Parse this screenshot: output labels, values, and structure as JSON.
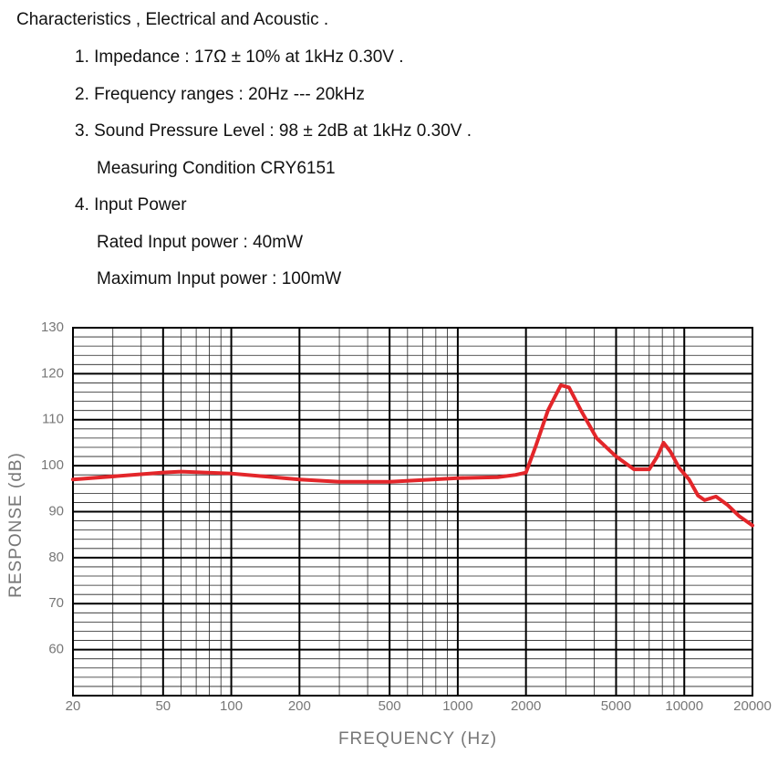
{
  "header": {
    "title": "Characteristics , Electrical and Acoustic ."
  },
  "specs": [
    "1. Impedance : 17Ω ± 10% at 1kHz  0.30V .",
    "2. Frequency ranges : 20Hz --- 20kHz",
    "3. Sound Pressure Level : 98 ± 2dB at 1kHz 0.30V .",
    "Measuring Condition CRY6151",
    "4. Input Power",
    "Rated Input power : 40mW",
    "Maximum Input power : 100mW"
  ],
  "chart_data": {
    "type": "line",
    "x_label": "FREQUENCY (Hz)",
    "y_label": "RESPONSE (dB)",
    "x_scale": "log",
    "grid": true,
    "xlim": [
      20,
      20000
    ],
    "xticks": [
      20,
      50,
      100,
      200,
      500,
      1000,
      2000,
      5000,
      10000,
      20000
    ],
    "ylim": [
      50,
      130
    ],
    "yticks": [
      60,
      70,
      80,
      90,
      100,
      110,
      120,
      130
    ],
    "series": [
      {
        "color": "#e3262a",
        "x": [
          20,
          50,
          60,
          100,
          200,
          300,
          500,
          1000,
          1500,
          1800,
          2000,
          2200,
          2500,
          2850,
          3100,
          3500,
          4100,
          5000,
          6000,
          7000,
          7600,
          8100,
          8700,
          9500,
          10500,
          11500,
          12300,
          13800,
          15500,
          17500,
          20000
        ],
        "values": [
          97,
          98.5,
          98.7,
          98.3,
          97,
          96.5,
          96.5,
          97.3,
          97.5,
          98,
          98.5,
          104,
          112,
          117.5,
          117,
          112,
          106,
          102,
          99.2,
          99.2,
          102,
          105,
          103,
          99.5,
          97,
          93.5,
          92.5,
          93.3,
          91.5,
          89,
          87
        ]
      }
    ]
  }
}
